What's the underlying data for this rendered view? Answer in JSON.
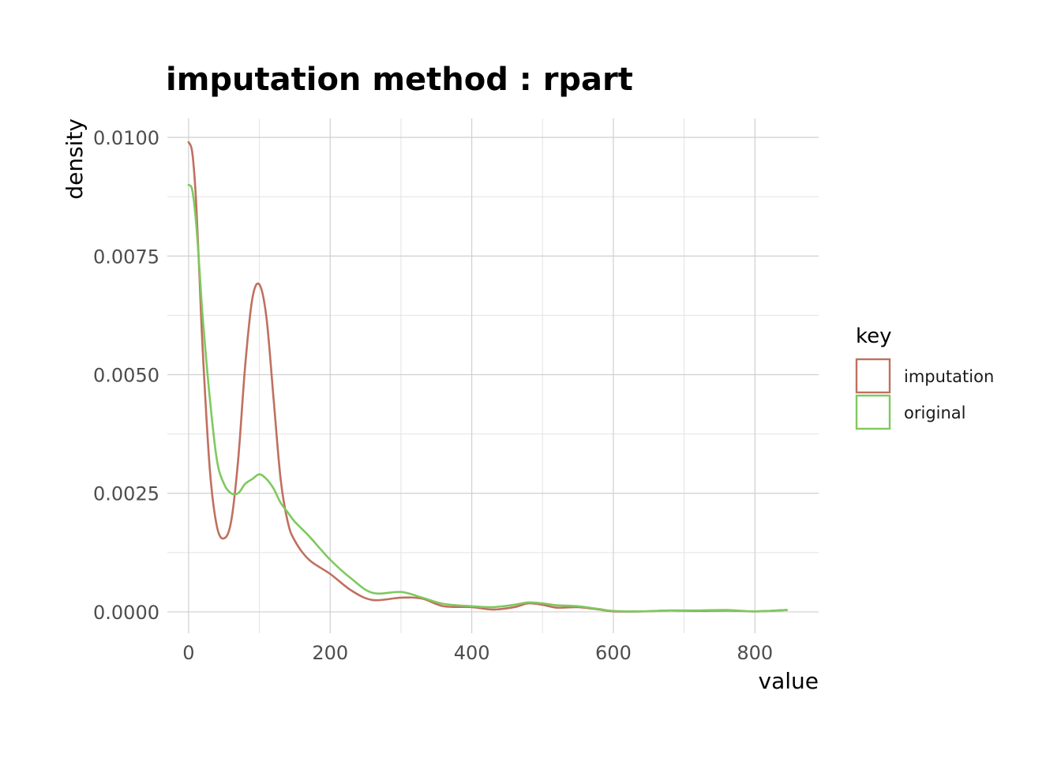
{
  "chart_data": {
    "type": "line",
    "title": "imputation method : rpart",
    "xlabel": "value",
    "ylabel": "density",
    "xlim": [
      -30,
      890
    ],
    "ylim": [
      -0.00045,
      0.0104
    ],
    "x_ticks": [
      0,
      200,
      400,
      600,
      800
    ],
    "x_tick_labels": [
      "0",
      "200",
      "400",
      "600",
      "800"
    ],
    "y_ticks": [
      0,
      0.0025,
      0.005,
      0.0075,
      0.01
    ],
    "y_tick_labels": [
      "0.0000",
      "0.0025",
      "0.0050",
      "0.0075",
      "0.0100"
    ],
    "grid": true,
    "legend": {
      "title": "key",
      "position": "right"
    },
    "series": [
      {
        "name": "imputation",
        "color": "#c0705f",
        "x": [
          0,
          5,
          10,
          15,
          20,
          30,
          40,
          50,
          60,
          70,
          80,
          90,
          100,
          110,
          120,
          130,
          140,
          150,
          170,
          200,
          230,
          260,
          300,
          330,
          360,
          400,
          430,
          460,
          480,
          500,
          520,
          550,
          580,
          600,
          640,
          680,
          720,
          760,
          800,
          845
        ],
        "y": [
          0.0099,
          0.0097,
          0.0088,
          0.0072,
          0.0055,
          0.003,
          0.0018,
          0.00155,
          0.0019,
          0.0032,
          0.0052,
          0.0066,
          0.0069,
          0.0062,
          0.0045,
          0.0028,
          0.0019,
          0.0015,
          0.0011,
          0.0008,
          0.00045,
          0.00025,
          0.0003,
          0.00028,
          0.00012,
          0.0001,
          5e-05,
          0.0001,
          0.00018,
          0.00015,
          9e-05,
          0.0001,
          5e-05,
          1e-05,
          1e-05,
          3e-05,
          2e-05,
          3e-05,
          1e-05,
          4e-05
        ]
      },
      {
        "name": "original",
        "color": "#7ec95f",
        "x": [
          0,
          5,
          10,
          15,
          20,
          30,
          40,
          50,
          60,
          70,
          80,
          90,
          100,
          110,
          120,
          130,
          140,
          150,
          170,
          200,
          230,
          260,
          300,
          330,
          360,
          400,
          430,
          460,
          480,
          500,
          520,
          550,
          580,
          600,
          640,
          680,
          720,
          760,
          800,
          845
        ],
        "y": [
          0.009,
          0.0089,
          0.0083,
          0.0073,
          0.0062,
          0.0045,
          0.0032,
          0.0027,
          0.0025,
          0.0025,
          0.0027,
          0.0028,
          0.0029,
          0.0028,
          0.0026,
          0.0023,
          0.0021,
          0.0019,
          0.0016,
          0.0011,
          0.0007,
          0.0004,
          0.00042,
          0.0003,
          0.00017,
          0.00012,
          0.0001,
          0.00015,
          0.0002,
          0.00018,
          0.00014,
          0.00012,
          6e-05,
          2e-05,
          1e-05,
          3e-05,
          3e-05,
          4e-05,
          1e-05,
          4e-05
        ]
      }
    ]
  }
}
